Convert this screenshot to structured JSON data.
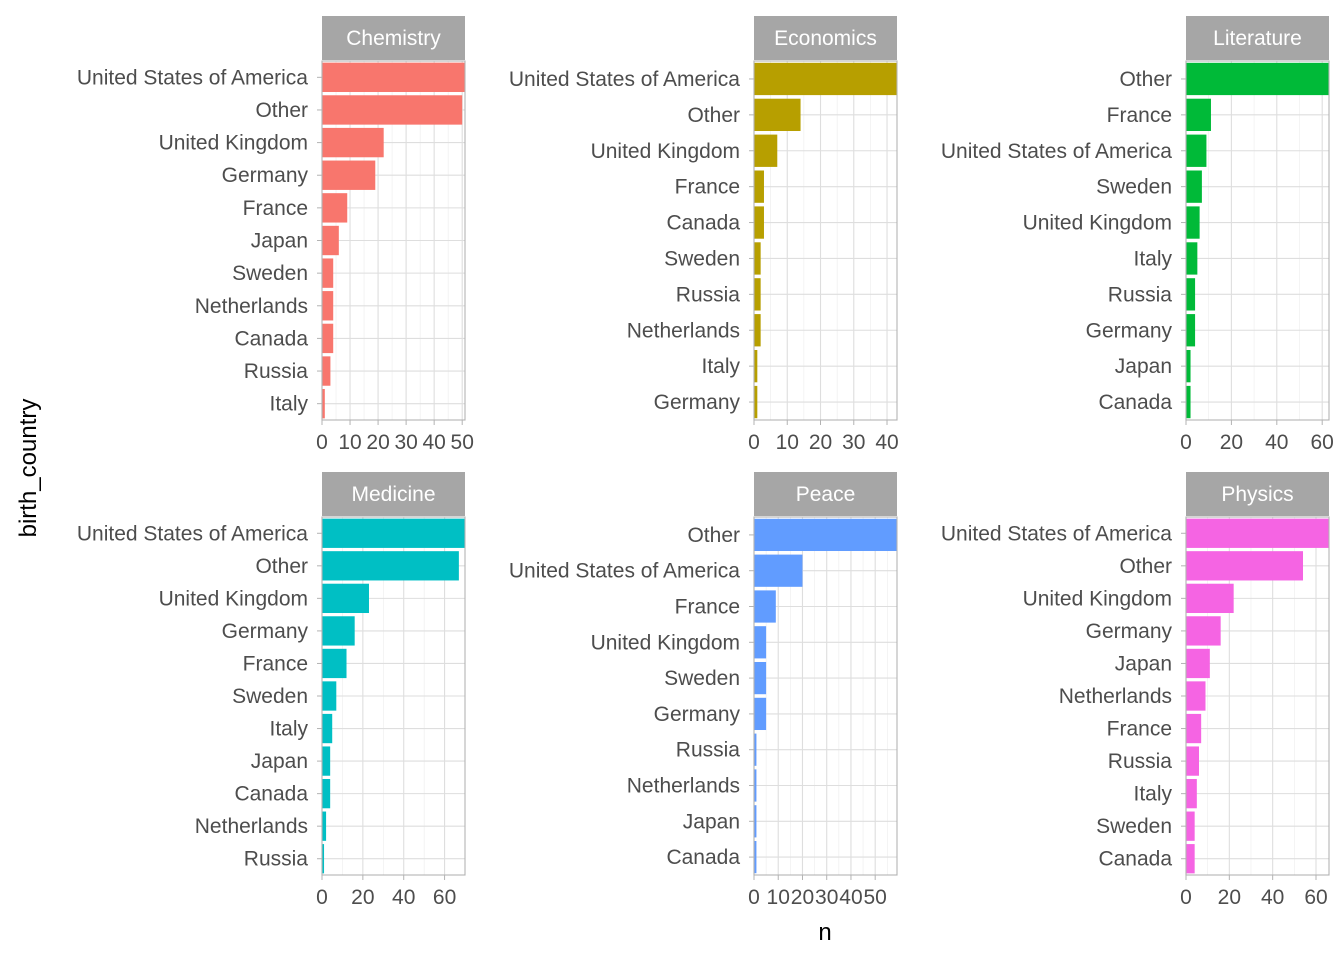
{
  "chart_data": {
    "type": "bar",
    "orientation": "horizontal",
    "xlabel": "n",
    "ylabel": "birth_country",
    "grid": true,
    "legend": "none",
    "facets": [
      {
        "title": "Chemistry",
        "color": "#F8766D",
        "xlim": [
          0,
          51
        ],
        "ticks": [
          "0",
          "10",
          "20",
          "30",
          "40",
          "50"
        ],
        "tick_values": [
          0,
          10,
          20,
          30,
          40,
          50
        ],
        "categories": [
          "United States of America",
          "Other",
          "United Kingdom",
          "Germany",
          "France",
          "Japan",
          "Sweden",
          "Netherlands",
          "Canada",
          "Russia",
          "Italy"
        ],
        "values": [
          51,
          50,
          22,
          19,
          9,
          6,
          4,
          4,
          4,
          3,
          1
        ]
      },
      {
        "title": "Economics",
        "color": "#B79F00",
        "xlim": [
          0,
          43
        ],
        "ticks": [
          "0",
          "10",
          "20",
          "30",
          "40"
        ],
        "tick_values": [
          0,
          10,
          20,
          30,
          40
        ],
        "categories": [
          "United States of America",
          "Other",
          "United Kingdom",
          "France",
          "Canada",
          "Sweden",
          "Russia",
          "Netherlands",
          "Italy",
          "Germany"
        ],
        "values": [
          43,
          14,
          7,
          3,
          3,
          2,
          2,
          2,
          1,
          1
        ]
      },
      {
        "title": "Literature",
        "color": "#00BA38",
        "xlim": [
          0,
          63
        ],
        "ticks": [
          "0",
          "20",
          "40",
          "60"
        ],
        "tick_values": [
          0,
          20,
          40,
          60
        ],
        "categories": [
          "Other",
          "France",
          "United States of America",
          "Sweden",
          "United Kingdom",
          "Italy",
          "Russia",
          "Germany",
          "Japan",
          "Canada"
        ],
        "values": [
          63,
          11,
          9,
          7,
          6,
          5,
          4,
          4,
          2,
          2
        ]
      },
      {
        "title": "Medicine",
        "color": "#00BFC4",
        "xlim": [
          0,
          70
        ],
        "ticks": [
          "0",
          "20",
          "40",
          "60"
        ],
        "tick_values": [
          0,
          20,
          40,
          60
        ],
        "categories": [
          "United States of America",
          "Other",
          "United Kingdom",
          "Germany",
          "France",
          "Sweden",
          "Italy",
          "Japan",
          "Canada",
          "Netherlands",
          "Russia"
        ],
        "values": [
          70,
          67,
          23,
          16,
          12,
          7,
          5,
          4,
          4,
          2,
          1
        ]
      },
      {
        "title": "Peace",
        "color": "#619CFF",
        "xlim": [
          0,
          59
        ],
        "ticks": [
          "0",
          "10",
          "20",
          "30",
          "40",
          "50"
        ],
        "tick_values": [
          0,
          10,
          20,
          30,
          40,
          50
        ],
        "categories": [
          "Other",
          "United States of America",
          "France",
          "United Kingdom",
          "Sweden",
          "Germany",
          "Russia",
          "Netherlands",
          "Japan",
          "Canada"
        ],
        "values": [
          59,
          20,
          9,
          5,
          5,
          5,
          1,
          1,
          1,
          1
        ]
      },
      {
        "title": "Physics",
        "color": "#F564E3",
        "xlim": [
          0,
          66
        ],
        "ticks": [
          "0",
          "20",
          "40",
          "60"
        ],
        "tick_values": [
          0,
          20,
          40,
          60
        ],
        "categories": [
          "United States of America",
          "Other",
          "United Kingdom",
          "Germany",
          "Japan",
          "Netherlands",
          "France",
          "Russia",
          "Italy",
          "Sweden",
          "Canada"
        ],
        "values": [
          66,
          54,
          22,
          16,
          11,
          9,
          7,
          6,
          5,
          4,
          4
        ]
      }
    ]
  }
}
